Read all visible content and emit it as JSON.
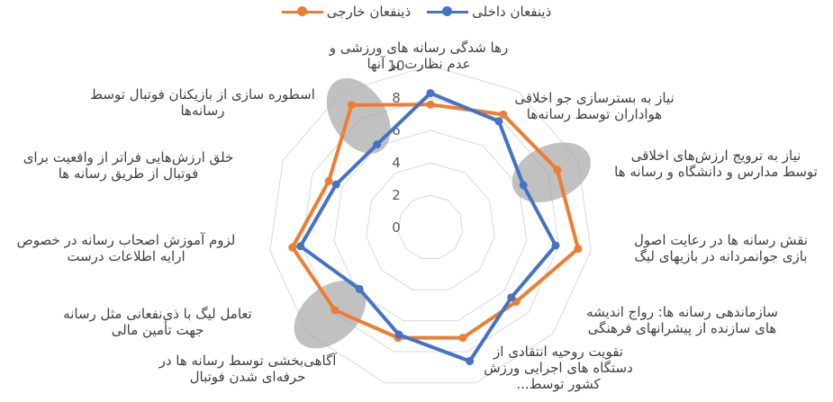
{
  "chart_data": {
    "type": "radar",
    "categories": [
      "رها شدگی رسانه های ورزشی و عدم نظارت بر آنها",
      "نیاز به بسترسازی جو اخلاقی هواداران توسط رسانه‌ها",
      "نیاز به ترویج ارزش‌های اخلاقی توسط مدارس و دانشگاه و رسانه ها",
      "نقش رسانه ها در رعایت اصول بازی جوانمردانه در بازیهای لیگ",
      "سازماندهی رسانه ها: رواج اندیشه های سازنده از پیشرانهای فرهنگی",
      "تقویت روحیه انتقادی از دستگاه های اجرایی ورزش کشور توسط...",
      "آگاهی‌بخشی توسط رسانه ها در حرفه‌ای شدن فوتبال",
      "تعامل لیگ با ذی‌نفعانی مثل رسانه جهت تأمین مالی",
      "لزوم آموزش اصحاب رسانه در خصوص ارایه اطلاعات درست",
      "خلق ارزش‌هایی فراتر از واقعیت برای فوتبال از طریق رسانه ها",
      "اسطوره سازی از بازیکنان فوتبال توسط رسانه‌ها"
    ],
    "series": [
      {
        "name": "ذینفعان داخلی",
        "color": "#4472C4",
        "values": [
          8.3,
          7.8,
          6.3,
          7.8,
          6.6,
          8.6,
          6.9,
          5.8,
          8.1,
          6.4,
          6.1
        ]
      },
      {
        "name": "ذینفعان خارجی",
        "color": "#ED7D31",
        "values": [
          7.6,
          8.3,
          8.6,
          9.2,
          7.0,
          7.1,
          7.1,
          7.8,
          8.6,
          6.9,
          9.0
        ]
      }
    ],
    "axis": {
      "min": 0,
      "max": 10,
      "step": 2,
      "tick_labels": [
        "0",
        "2",
        "4",
        "6",
        "8",
        "10"
      ]
    },
    "highlight_color": "#A6A6A6",
    "highlight_categories": [
      2,
      7,
      10
    ],
    "grid": true,
    "legend": "top"
  }
}
